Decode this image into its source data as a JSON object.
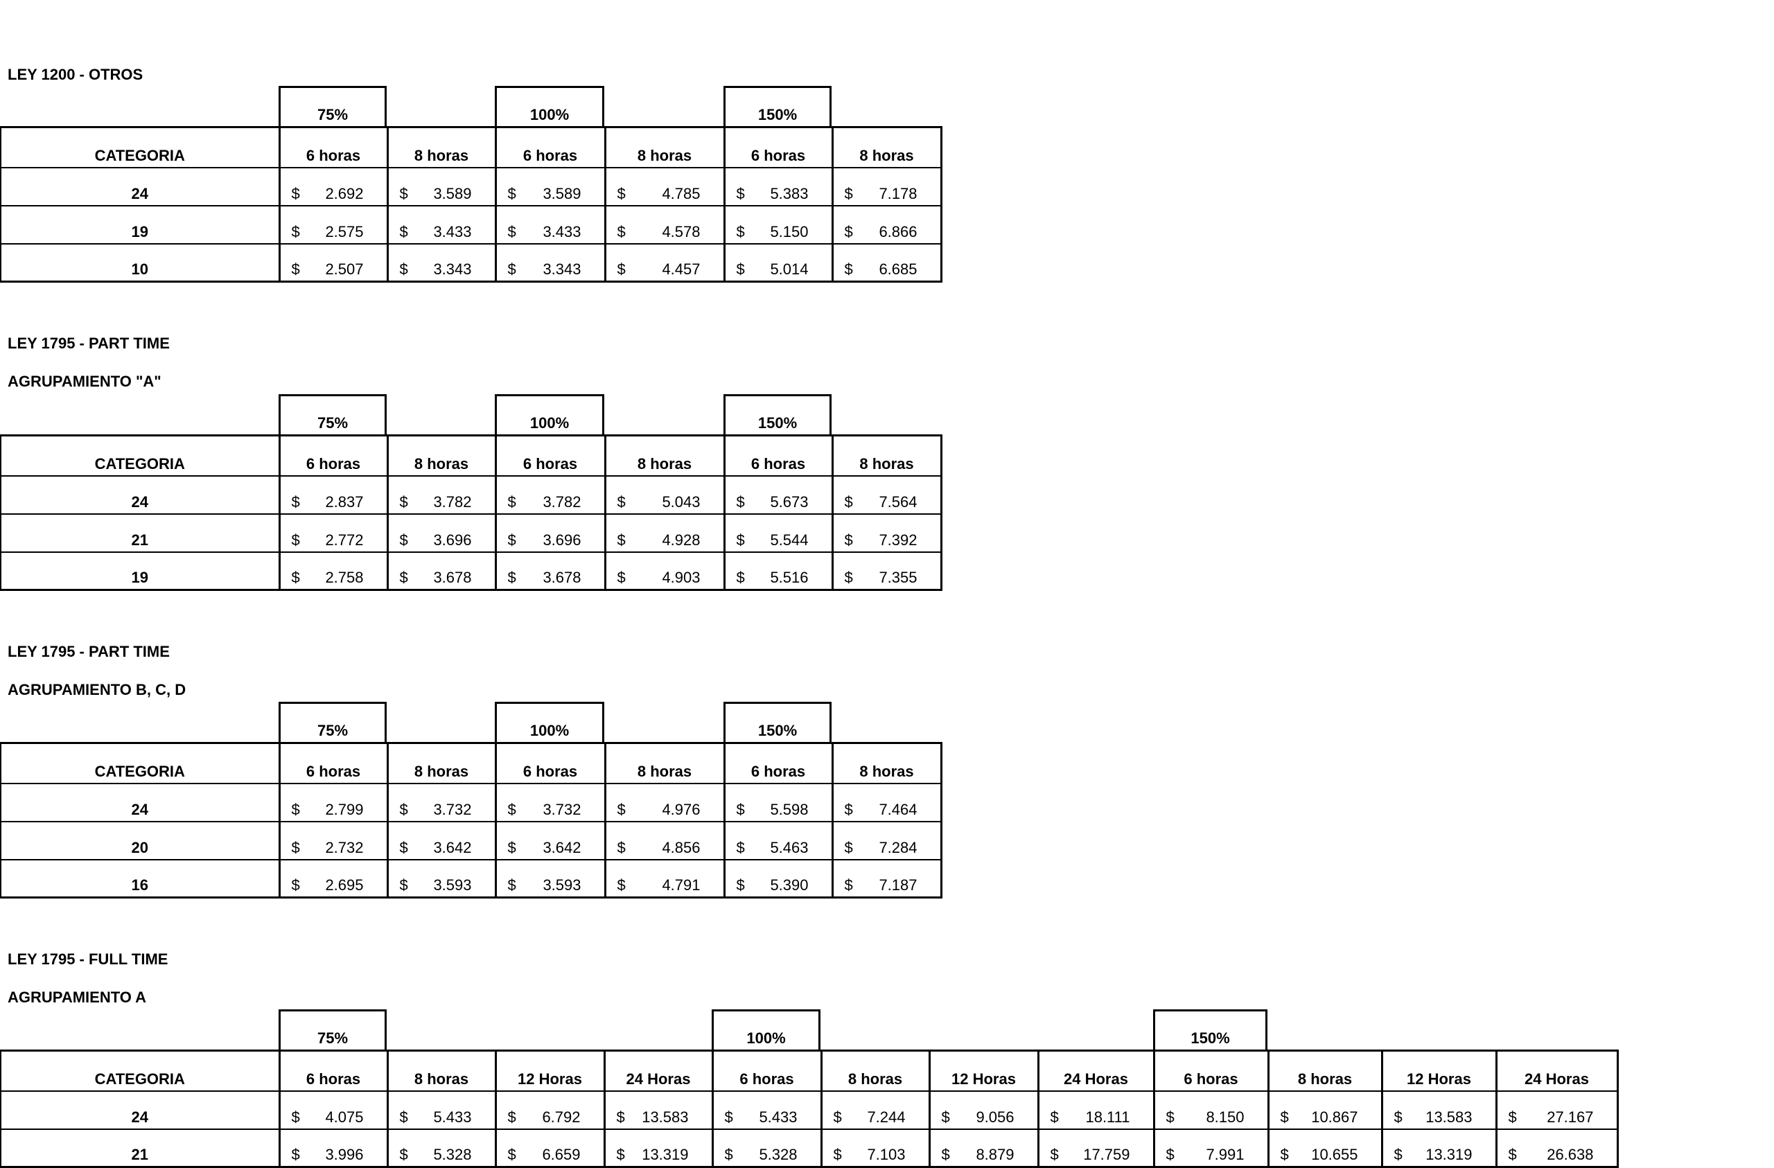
{
  "sections": [
    {
      "title": "LEY 1200 - OTROS",
      "subtitle": "",
      "pct_labels": [
        "75%",
        "100%",
        "150%"
      ],
      "category_header": "CATEGORIA",
      "columns": [
        "6 horas",
        "8 horas",
        "6 horas",
        "8 horas",
        "6 horas",
        "8 horas"
      ],
      "currency": "$",
      "rows": [
        {
          "cat": "24",
          "values": [
            "2.692",
            "3.589",
            "3.589",
            "4.785",
            "5.383",
            "7.178"
          ]
        },
        {
          "cat": "19",
          "values": [
            "2.575",
            "3.433",
            "3.433",
            "4.578",
            "5.150",
            "6.866"
          ]
        },
        {
          "cat": "10",
          "values": [
            "2.507",
            "3.343",
            "3.343",
            "4.457",
            "5.014",
            "6.685"
          ]
        }
      ]
    },
    {
      "title": "LEY 1795 - PART TIME",
      "subtitle": "AGRUPAMIENTO \"A\"",
      "pct_labels": [
        "75%",
        "100%",
        "150%"
      ],
      "category_header": "CATEGORIA",
      "columns": [
        "6 horas",
        "8 horas",
        "6 horas",
        "8 horas",
        "6 horas",
        "8 horas"
      ],
      "currency": "$",
      "rows": [
        {
          "cat": "24",
          "values": [
            "2.837",
            "3.782",
            "3.782",
            "5.043",
            "5.673",
            "7.564"
          ]
        },
        {
          "cat": "21",
          "values": [
            "2.772",
            "3.696",
            "3.696",
            "4.928",
            "5.544",
            "7.392"
          ]
        },
        {
          "cat": "19",
          "values": [
            "2.758",
            "3.678",
            "3.678",
            "4.903",
            "5.516",
            "7.355"
          ]
        }
      ]
    },
    {
      "title": "LEY 1795 - PART TIME",
      "subtitle": "AGRUPAMIENTO B, C, D",
      "pct_labels": [
        "75%",
        "100%",
        "150%"
      ],
      "category_header": "CATEGORIA",
      "columns": [
        "6 horas",
        "8 horas",
        "6 horas",
        "8 horas",
        "6 horas",
        "8 horas"
      ],
      "currency": "$",
      "rows": [
        {
          "cat": "24",
          "values": [
            "2.799",
            "3.732",
            "3.732",
            "4.976",
            "5.598",
            "7.464"
          ]
        },
        {
          "cat": "20",
          "values": [
            "2.732",
            "3.642",
            "3.642",
            "4.856",
            "5.463",
            "7.284"
          ]
        },
        {
          "cat": "16",
          "values": [
            "2.695",
            "3.593",
            "3.593",
            "4.791",
            "5.390",
            "7.187"
          ]
        }
      ]
    },
    {
      "title": "LEY 1795 - FULL TIME",
      "subtitle": "AGRUPAMIENTO A",
      "pct_labels": [
        "75%",
        "100%",
        "150%"
      ],
      "category_header": "CATEGORIA",
      "columns": [
        "6 horas",
        "8 horas",
        "12 Horas",
        "24 Horas",
        "6 horas",
        "8 horas",
        "12 Horas",
        "24 Horas",
        "6 horas",
        "8 horas",
        "12 Horas",
        "24 Horas"
      ],
      "currency": "$",
      "rows": [
        {
          "cat": "24",
          "values": [
            "4.075",
            "5.433",
            "6.792",
            "13.583",
            "5.433",
            "7.244",
            "9.056",
            "18.111",
            "8.150",
            "10.867",
            "13.583",
            "27.167"
          ]
        },
        {
          "cat": "21",
          "values": [
            "3.996",
            "5.328",
            "6.659",
            "13.319",
            "5.328",
            "7.103",
            "8.879",
            "17.759",
            "7.991",
            "10.655",
            "13.319",
            "26.638"
          ]
        }
      ]
    }
  ]
}
